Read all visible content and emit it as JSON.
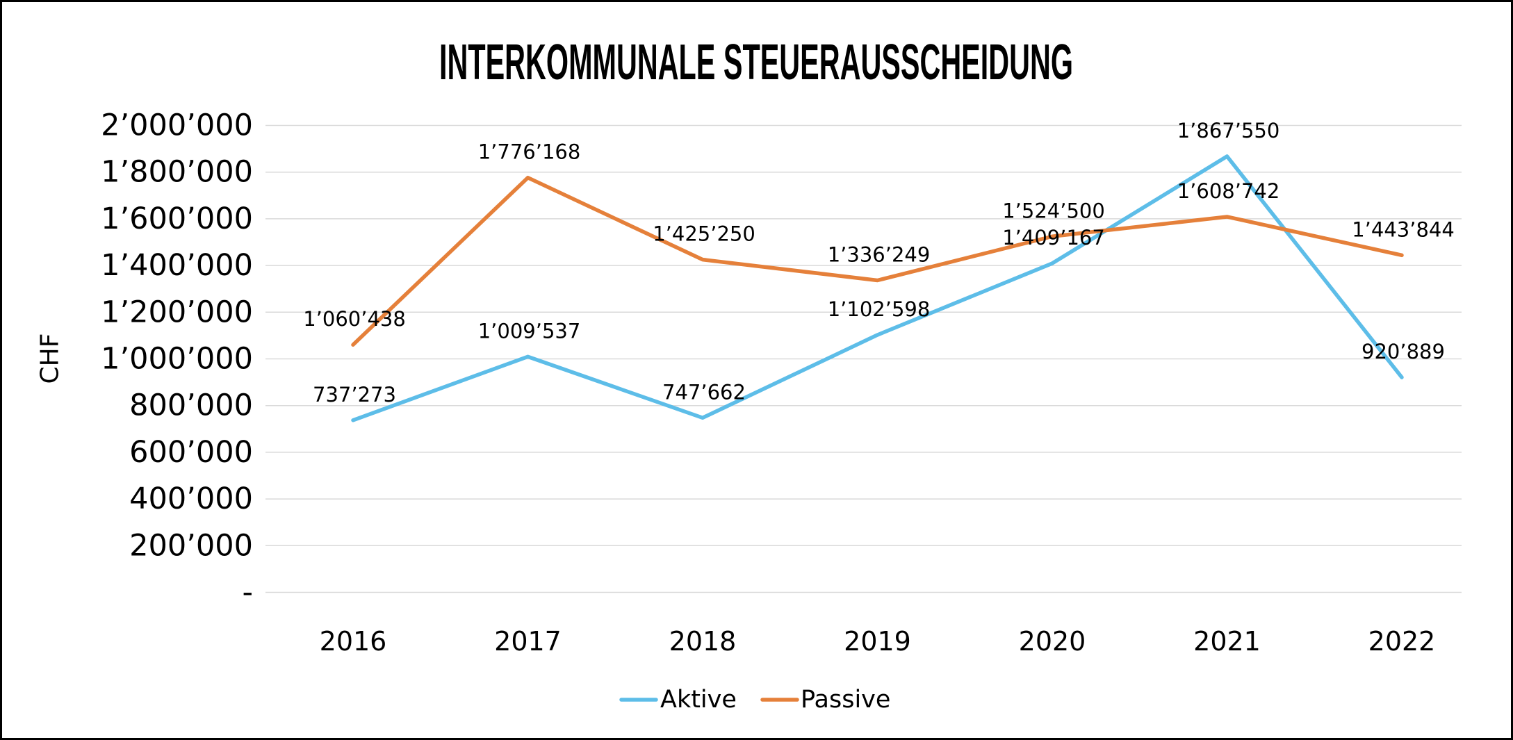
{
  "chart_data": {
    "type": "line",
    "title": "INTERKOMMUNALE STEUERAUSSCHEIDUNG",
    "ylabel": "CHF",
    "categories": [
      "2016",
      "2017",
      "2018",
      "2019",
      "2020",
      "2021",
      "2022"
    ],
    "ylim": [
      0,
      2000000
    ],
    "yticks": [
      0,
      200000,
      400000,
      600000,
      800000,
      1000000,
      1200000,
      1400000,
      1600000,
      1800000,
      2000000
    ],
    "ytick_labels": [
      "-",
      "200’000",
      "400’000",
      "600’000",
      "800’000",
      "1’000’000",
      "1’200’000",
      "1’400’000",
      "1’600’000",
      "1’800’000",
      "2’000’000"
    ],
    "grid": true,
    "legend": "bottom",
    "series": [
      {
        "name": "Aktive",
        "color": "#5DBDE8",
        "values": [
          737273,
          1009537,
          747662,
          1102598,
          1409167,
          1867550,
          920889
        ],
        "labels": [
          "737’273",
          "1’009’537",
          "747’662",
          "1’102’598",
          "1’409’167",
          "1’867’550",
          "920’889"
        ]
      },
      {
        "name": "Passive",
        "color": "#E5803A",
        "values": [
          1060438,
          1776168,
          1425250,
          1336249,
          1524500,
          1608742,
          1443844
        ],
        "labels": [
          "1’060’438",
          "1’776’168",
          "1’425’250",
          "1’336’249",
          "1’524’500",
          "1’608’742",
          "1’443’844"
        ]
      }
    ]
  }
}
